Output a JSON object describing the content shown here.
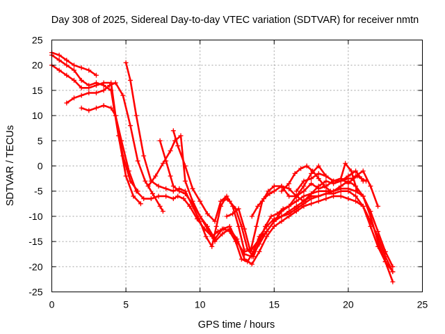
{
  "chart_data": {
    "type": "scatter",
    "title": "Day 308 of 2025, Sidereal Day-to-day VTEC variation (SDTVAR) for receiver nmtn",
    "xlabel": "GPS time / hours",
    "ylabel": "SDTVAR / TECUs",
    "xlim": [
      0,
      25
    ],
    "ylim": [
      -25,
      25
    ],
    "xticks": [
      0,
      5,
      10,
      15,
      20,
      25
    ],
    "yticks": [
      -25,
      -20,
      -15,
      -10,
      -5,
      0,
      5,
      10,
      15,
      20,
      25
    ],
    "grid": true,
    "marker": "plus",
    "color": "#ff0000",
    "series": [
      {
        "x": [
          0.0,
          0.5,
          1.0,
          1.5,
          2.0,
          2.5,
          3.0,
          3.5,
          4.0,
          4.5,
          5.0,
          5.5,
          6.0
        ],
        "y": [
          22,
          21,
          20,
          19,
          17,
          16,
          16.5,
          16,
          15,
          6,
          -2,
          -6,
          -7.5
        ]
      },
      {
        "x": [
          0.0,
          0.5,
          1.0,
          1.5,
          2.0,
          2.5,
          3.0,
          3.5,
          4.0,
          4.3,
          4.8,
          5.3,
          5.8
        ],
        "y": [
          20,
          19,
          18,
          17,
          15.5,
          15.5,
          16,
          16.5,
          16.5,
          10,
          2,
          -3,
          -5
        ]
      },
      {
        "x": [
          0.0,
          0.5,
          1.0,
          1.5,
          2.0,
          2.5,
          3.0
        ],
        "y": [
          22.5,
          22,
          21,
          20,
          19.5,
          19,
          18
        ]
      },
      {
        "x": [
          1.0,
          1.5,
          2.0,
          2.5,
          3.0,
          3.5,
          3.9,
          4.3,
          4.8,
          5.3,
          5.8,
          6.3,
          6.8,
          7.3,
          7.5
        ],
        "y": [
          12.5,
          13.5,
          14,
          14.5,
          14.5,
          15,
          16,
          16.5,
          14,
          8,
          1,
          -3,
          -5.5,
          -8,
          -9
        ]
      },
      {
        "x": [
          2.0,
          2.5,
          3.0,
          3.5,
          4.0,
          4.3,
          4.7,
          5.2,
          5.7,
          6.2,
          6.7,
          7.2,
          7.7,
          8.2,
          8.5,
          8.9,
          9.3,
          9.8,
          10.3,
          10.8,
          11.2,
          11.6,
          12.0,
          12.4,
          12.8,
          13.2,
          13.6,
          14.0,
          14.5,
          15.0,
          15.5,
          16.0,
          16.5,
          17.0,
          17.5,
          18.0,
          18.5,
          19.0,
          19.5,
          20.0,
          20.5,
          21.0,
          21.5,
          22.0,
          22.5,
          23.0
        ],
        "y": [
          11.5,
          11,
          11.5,
          12,
          11.5,
          10,
          5,
          -1,
          -5,
          -6.5,
          -6.5,
          -6,
          -6,
          -6.5,
          -6,
          -6.5,
          -8,
          -10.5,
          -12.5,
          -14,
          -13,
          -12.5,
          -13,
          -15,
          -18.5,
          -19,
          -17,
          -14,
          -12,
          -10.5,
          -10,
          -9,
          -8,
          -7,
          -6,
          -6,
          -5.5,
          -5.5,
          -5,
          -5,
          -6,
          -8,
          -12,
          -16,
          -19,
          -21
        ]
      },
      {
        "x": [
          5.0,
          5.3,
          5.7,
          6.2,
          6.7,
          7.2,
          7.7,
          8.2,
          8.6,
          9.0,
          9.5,
          10.0,
          10.4,
          10.8,
          11.1,
          11.4,
          11.7,
          12.0,
          12.4,
          12.8,
          13.2,
          13.6,
          14.0,
          14.4,
          14.8,
          15.2,
          15.6,
          16.0,
          16.5,
          17.0,
          17.5,
          18.0,
          18.5,
          19.0,
          19.5,
          20.0,
          20.5,
          21.0,
          21.5,
          22.0,
          22.5,
          23.0
        ],
        "y": [
          20.5,
          17,
          10,
          2,
          -3,
          -4,
          -4.5,
          -5,
          -4.5,
          -5,
          -8,
          -11,
          -14,
          -16,
          -12,
          -8,
          -6.5,
          -7,
          -8.5,
          -12,
          -16.5,
          -18,
          -15,
          -12,
          -10,
          -9.5,
          -8.5,
          -8,
          -7,
          -6,
          -5.5,
          -5,
          -5,
          -5,
          -4.5,
          -4.5,
          -5,
          -6,
          -9,
          -13,
          -17,
          -20
        ]
      },
      {
        "x": [
          6.5,
          7.0,
          7.5,
          8.0,
          8.3,
          8.7,
          9.0,
          9.5,
          10.0,
          10.5,
          11.0,
          11.5,
          12.0,
          12.5,
          13.0,
          13.5,
          14.0,
          14.5,
          15.0,
          15.5,
          16.0,
          16.5,
          17.0,
          17.5,
          18.0,
          18.5,
          19.0,
          19.5,
          20.0,
          20.5,
          21.0,
          21.5,
          22.0,
          22.5,
          23.0
        ],
        "y": [
          -4,
          -2,
          0.5,
          3,
          5,
          6,
          -3,
          -7,
          -10,
          -12,
          -14.5,
          -12.5,
          -12,
          -15,
          -17.5,
          -18,
          -15.5,
          -13,
          -11,
          -10,
          -9.5,
          -8.5,
          -7.5,
          -6.5,
          -6,
          -5.5,
          -5,
          -4,
          -3,
          -4,
          -6,
          -10,
          -15,
          -19,
          -23
        ]
      },
      {
        "x": [
          7.3,
          7.7,
          8.0,
          8.2,
          8.6,
          9.0,
          9.5,
          10.0,
          10.5,
          11.0,
          11.5,
          12.0,
          12.5,
          13.0,
          13.5,
          14.0,
          14.5,
          15.0,
          15.5,
          16.0,
          16.5,
          17.0,
          17.5,
          18.0,
          18.5,
          19.0,
          19.5,
          20.0,
          20.5,
          21.0,
          21.5,
          22.0,
          22.5,
          23.0
        ],
        "y": [
          5,
          1,
          -2,
          -4,
          -5,
          -5.5,
          -7.5,
          -10,
          -12.5,
          -15,
          -13.5,
          -12.5,
          -14.5,
          -18.5,
          -19.5,
          -17,
          -14,
          -12,
          -11,
          -10,
          -9,
          -8,
          -7.5,
          -7,
          -6.5,
          -6,
          -6,
          -6.5,
          -7,
          -8,
          -11,
          -14,
          -18,
          -21
        ]
      },
      {
        "x": [
          8.2,
          8.5,
          9.0,
          9.5,
          10.0,
          10.5,
          11.0,
          11.4,
          11.8,
          12.2,
          12.6,
          13.0,
          13.5,
          14.0,
          14.5,
          15.0,
          15.5,
          16.0,
          16.5,
          17.0,
          17.5,
          18.0,
          18.5,
          19.0,
          19.5,
          20.0,
          20.5,
          21.0,
          21.5,
          22.0
        ],
        "y": [
          7,
          4,
          0,
          -4.5,
          -7,
          -9.5,
          -11,
          -7,
          -6,
          -8,
          -12,
          -17,
          -16.5,
          -14.5,
          -13,
          -11,
          -9,
          -8,
          -6,
          -4,
          -1.5,
          0,
          -2,
          -3,
          -2.5,
          -3.5,
          -2,
          -1,
          -4,
          -8
        ]
      },
      {
        "x": [
          11.8,
          12.2,
          12.6,
          13.0,
          13.4,
          13.8,
          14.2,
          14.6,
          15.0,
          15.5,
          16.0,
          16.5,
          17.0,
          17.5,
          18.0,
          18.5,
          19.0,
          19.5,
          20.0,
          20.5,
          21.0
        ],
        "y": [
          -10,
          -9.5,
          -8.5,
          -12.5,
          -17,
          -12,
          -7,
          -5,
          -4,
          -4,
          -6,
          -6,
          -5,
          -3.5,
          -4.5,
          -4,
          -3,
          -3,
          -2,
          -1,
          -3
        ]
      },
      {
        "x": [
          13.5,
          13.9,
          14.3,
          14.7,
          15.0,
          15.5,
          16.0,
          16.5,
          17.0,
          17.5,
          18.0,
          18.5,
          19.0,
          19.5,
          20.0,
          20.3,
          20.6,
          20.9,
          21.2
        ],
        "y": [
          -10,
          -8,
          -6.5,
          -5.5,
          -5,
          -4,
          -4.5,
          -6,
          -7,
          -5.5,
          -4,
          -3,
          -3.5,
          -3,
          -2.5,
          -2.5,
          -2,
          -2.5,
          -3
        ]
      },
      {
        "x": [
          16.5,
          17.0,
          17.5,
          18.0,
          18.5,
          19.0,
          19.5,
          19.8,
          20.2,
          20.6
        ],
        "y": [
          -5,
          -3,
          -2.5,
          -1.5,
          -2,
          -3,
          -2.5,
          0.5,
          -1,
          -5
        ]
      },
      {
        "x": [
          15.5,
          16.0,
          16.4,
          16.8,
          17.2,
          17.6,
          18.0,
          18.4,
          18.8
        ],
        "y": [
          -5,
          -3.5,
          -1.5,
          -0.5,
          0,
          -1,
          -2.5,
          -4,
          -5
        ]
      }
    ]
  }
}
